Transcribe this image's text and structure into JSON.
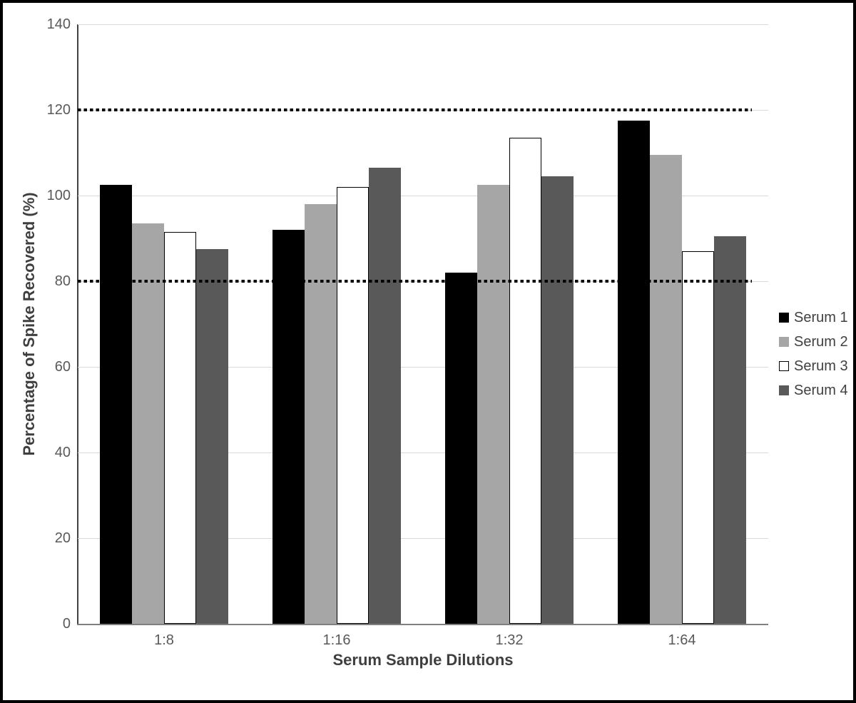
{
  "frame": {
    "border_color": "#000000",
    "background_color": "#ffffff"
  },
  "chart_data": {
    "type": "bar",
    "title": "",
    "xlabel": "Serum Sample Dilutions",
    "ylabel": "Percentage of Spike Recovered (%)",
    "categories": [
      "1:8",
      "1:16",
      "1:32",
      "1:64"
    ],
    "series": [
      {
        "name": "Serum 1",
        "color": "#000000",
        "border": "#000000",
        "values": [
          102.5,
          92,
          82,
          117.5
        ]
      },
      {
        "name": "Serum 2",
        "color": "#a6a6a6",
        "border": "#a6a6a6",
        "values": [
          93.5,
          98,
          102.5,
          109.5
        ]
      },
      {
        "name": "Serum 3",
        "color": "#ffffff",
        "border": "#000000",
        "values": [
          91.5,
          102,
          113.5,
          87
        ]
      },
      {
        "name": "Serum 4",
        "color": "#595959",
        "border": "#595959",
        "values": [
          87.5,
          106.5,
          104.5,
          90.5
        ]
      }
    ],
    "ylim": [
      0,
      140
    ],
    "yticks": [
      0,
      20,
      40,
      60,
      80,
      100,
      120,
      140
    ],
    "grid": true,
    "gridline_color": "#d9d9d9",
    "reference_lines": [
      {
        "y": 80,
        "style": "dotted",
        "color": "#000000"
      },
      {
        "y": 120,
        "style": "dotted",
        "color": "#000000"
      }
    ],
    "legend_position": "right",
    "legend_entries": [
      "Serum 1",
      "Serum 2",
      "Serum 3",
      "Serum 4"
    ]
  }
}
